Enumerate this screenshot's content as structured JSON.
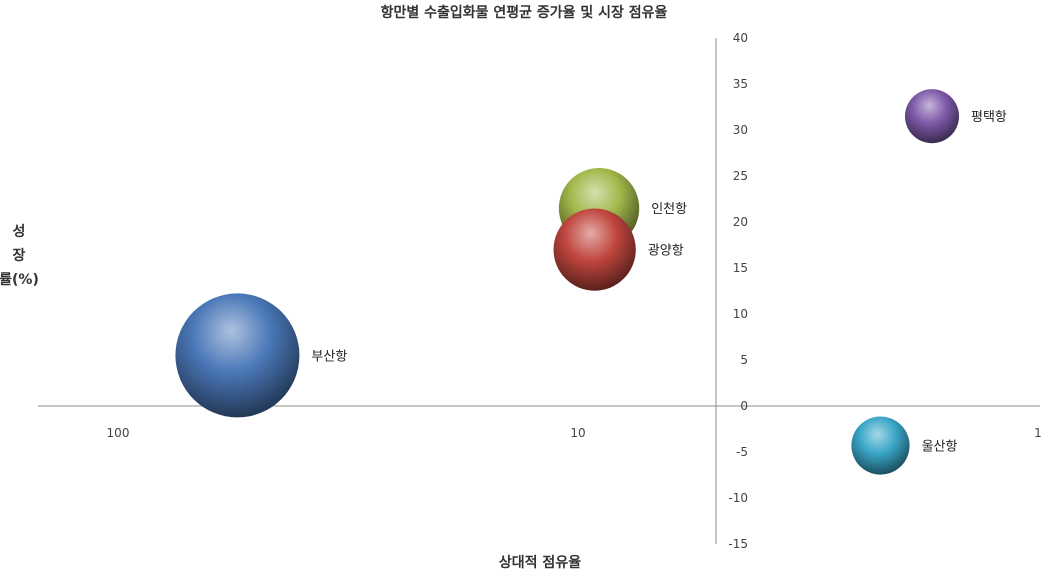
{
  "chart_data": {
    "type": "bubble",
    "title": "항만별 수출입화물 연평균 증가율 및 시장 점유율",
    "xlabel": "상대적 점유율",
    "ylabel": "성장률(%)",
    "x_scale": "log",
    "x_reversed": true,
    "xlim": [
      100,
      1
    ],
    "ylim": [
      -15,
      40
    ],
    "x_ticks": [
      "100",
      "10",
      "1"
    ],
    "x_tick_values": [
      100,
      10,
      1
    ],
    "y_ticks": [
      "40",
      "35",
      "30",
      "25",
      "20",
      "15",
      "10",
      "5",
      "0",
      "-5",
      "-10",
      "-15"
    ],
    "y_tick_values": [
      40,
      35,
      30,
      25,
      20,
      15,
      10,
      5,
      0,
      -5,
      -10,
      -15
    ],
    "grid": false,
    "points": [
      {
        "label": "부산항",
        "x": 55,
        "y": 5.5,
        "size": 1.0,
        "color": "#4a78b8"
      },
      {
        "label": "인천항",
        "x": 9.0,
        "y": 21.5,
        "size": 0.42,
        "color": "#a2b84a"
      },
      {
        "label": "광양항",
        "x": 9.2,
        "y": 17.0,
        "size": 0.44,
        "color": "#c0463e"
      },
      {
        "label": "평택항",
        "x": 1.7,
        "y": 31.5,
        "size": 0.19,
        "color": "#7d5aa8"
      },
      {
        "label": "울산항",
        "x": 2.2,
        "y": -4.3,
        "size": 0.22,
        "color": "#3aa7c8"
      }
    ]
  }
}
